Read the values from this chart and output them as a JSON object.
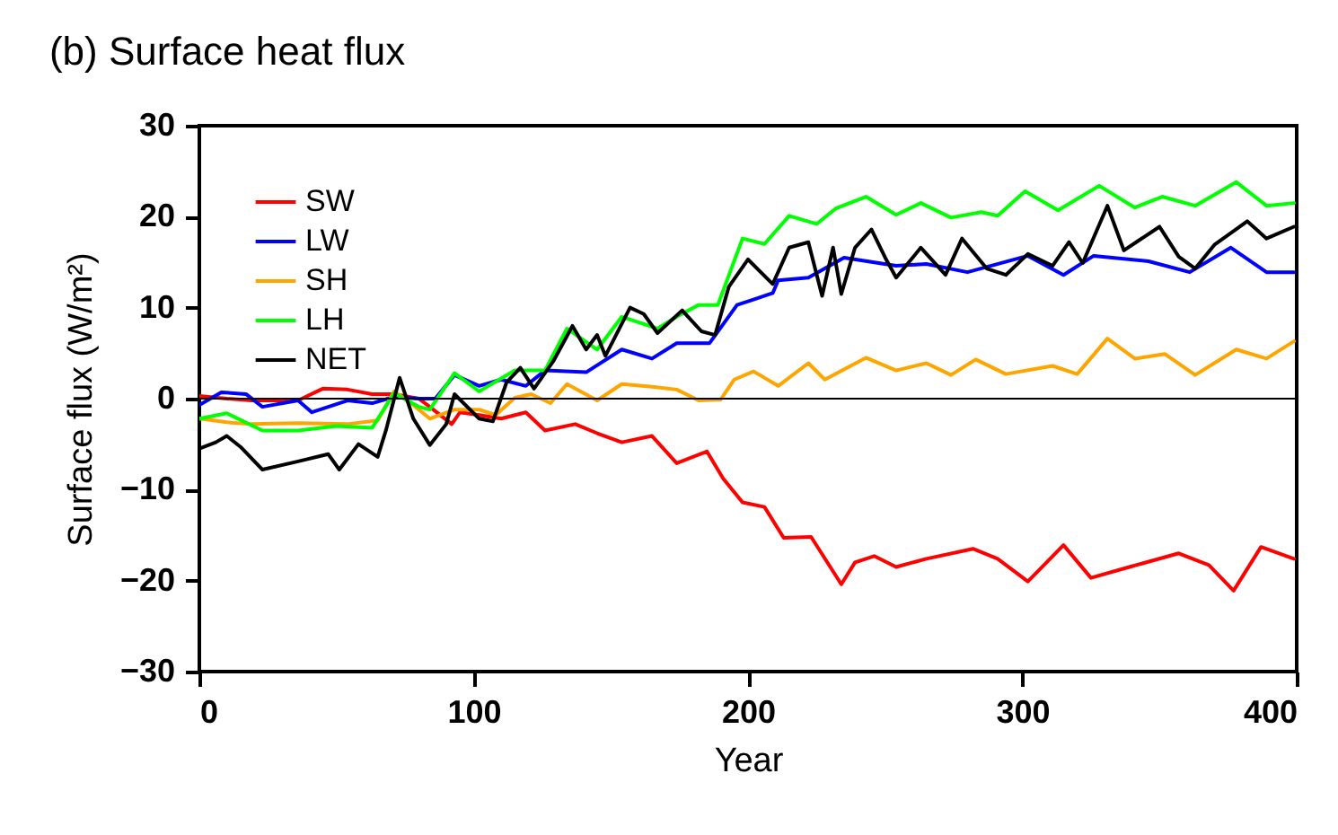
{
  "chart_data": {
    "type": "line",
    "title": "(b) Surface heat flux",
    "xlabel": "Year",
    "ylabel": "Surface flux (W/m²)",
    "xlim": [
      0,
      400
    ],
    "xticks": [
      0,
      100,
      200,
      300,
      400
    ],
    "ylim": [
      -30,
      30
    ],
    "yticks": [
      -30,
      -20,
      -10,
      0,
      10,
      20,
      30
    ],
    "grid": false,
    "legend": "top left",
    "line_style": "solid",
    "marker": "none",
    "ref_lines": [
      {
        "axis": "y",
        "value": 0,
        "color": "#000000"
      }
    ],
    "series": [
      {
        "name": "SW",
        "color": "#ff0000",
        "x": [
          0,
          10,
          19,
          36,
          45,
          54,
          63,
          71,
          80,
          84,
          92,
          95,
          102,
          110,
          119,
          126,
          137,
          145,
          154,
          165,
          174,
          185,
          191,
          198,
          206,
          213,
          223,
          234,
          239,
          246,
          254,
          265,
          282,
          291,
          302,
          315,
          325,
          339,
          357,
          368,
          377,
          387,
          399
        ],
        "values": [
          0.3,
          0,
          -0.2,
          -0.2,
          1.1,
          1.0,
          0.5,
          0.5,
          0,
          -0.9,
          -2.8,
          -1.5,
          -1.8,
          -2.2,
          -1.5,
          -3.5,
          -2.8,
          -3.8,
          -4.8,
          -4.1,
          -7.1,
          -5.8,
          -8.8,
          -11.4,
          -11.9,
          -15.3,
          -15.2,
          -20.4,
          -18,
          -17.3,
          -18.5,
          -17.6,
          -16.5,
          -17.6,
          -20.1,
          -16.1,
          -19.7,
          -18.5,
          -17,
          -18.3,
          -21.1,
          -16.3,
          -17.6
        ]
      },
      {
        "name": "LW",
        "color": "#0000ff",
        "x": [
          0,
          8,
          17,
          23,
          36,
          41,
          54,
          63,
          71,
          80,
          86,
          93,
          102,
          110,
          119,
          126,
          141,
          154,
          165,
          174,
          186,
          196,
          202,
          209,
          211,
          222,
          235,
          254,
          265,
          280,
          302,
          315,
          326,
          346,
          361,
          376,
          389,
          399
        ],
        "values": [
          -0.7,
          0.7,
          0.5,
          -0.9,
          -0.2,
          -1.5,
          -0.2,
          -0.5,
          0.2,
          0,
          0,
          2.6,
          1.4,
          2.1,
          1.4,
          3.1,
          2.9,
          5.4,
          4.4,
          6.1,
          6.1,
          10.3,
          10.9,
          11.6,
          13,
          13.3,
          15.5,
          14.6,
          14.8,
          13.9,
          15.7,
          13.6,
          15.7,
          15.1,
          13.9,
          16.6,
          13.9,
          13.9
        ]
      },
      {
        "name": "SH",
        "color": "#ffa500",
        "x": [
          0,
          10,
          19,
          36,
          54,
          65,
          71,
          78,
          84,
          93,
          102,
          108,
          115,
          121,
          128,
          134,
          145,
          154,
          165,
          174,
          182,
          190,
          195,
          202,
          211,
          222,
          228,
          243,
          254,
          265,
          274,
          283,
          294,
          311,
          320,
          331,
          341,
          352,
          363,
          378,
          389,
          399
        ],
        "values": [
          -2.2,
          -2.6,
          -2.8,
          -2.7,
          -2.8,
          -2.4,
          0.8,
          -0.7,
          -2.2,
          -1.2,
          -1.2,
          -1.8,
          0.1,
          0.5,
          -0.5,
          1.6,
          -0.2,
          1.6,
          1.3,
          1.0,
          -0.2,
          -0.1,
          2.1,
          3.0,
          1.4,
          3.9,
          2.1,
          4.5,
          3.1,
          3.9,
          2.6,
          4.3,
          2.7,
          3.6,
          2.7,
          6.6,
          4.4,
          4.9,
          2.6,
          5.4,
          4.4,
          6.3
        ]
      },
      {
        "name": "LH",
        "color": "#00ff00",
        "x": [
          0,
          10,
          23,
          36,
          50,
          63,
          71,
          80,
          84,
          93,
          102,
          115,
          126,
          134,
          145,
          154,
          167,
          174,
          182,
          189,
          198,
          206,
          215,
          225,
          232,
          243,
          254,
          263,
          274,
          285,
          291,
          301,
          313,
          328,
          341,
          351,
          363,
          378,
          389,
          399
        ],
        "values": [
          -2.2,
          -1.6,
          -3.5,
          -3.5,
          -3.0,
          -3.2,
          0.6,
          -0.9,
          -1.2,
          2.8,
          0.8,
          3.1,
          3.1,
          7.7,
          5.4,
          9.0,
          7.7,
          9.0,
          10.3,
          10.3,
          17.6,
          17,
          20.1,
          19.2,
          20.9,
          22.2,
          20.2,
          21.5,
          19.9,
          20.5,
          20.1,
          22.8,
          20.7,
          23.4,
          21,
          22.2,
          21.2,
          23.8,
          21.2,
          21.5
        ]
      },
      {
        "name": "NET",
        "color": "#000000",
        "x": [
          0,
          6,
          10,
          15,
          23,
          36,
          47,
          51,
          58,
          65,
          68,
          73,
          78,
          84,
          90,
          93,
          102,
          107,
          112,
          117,
          122,
          129,
          136,
          141,
          145,
          148,
          157,
          162,
          167,
          176,
          183,
          188,
          193,
          200,
          209,
          215,
          222,
          227,
          231,
          234,
          239,
          245,
          250,
          254,
          263,
          272,
          278,
          287,
          294,
          302,
          311,
          317,
          322,
          331,
          337,
          350,
          357,
          363,
          370,
          382,
          389,
          399
        ],
        "values": [
          -5.5,
          -4.8,
          -4.1,
          -5.3,
          -7.8,
          -6.9,
          -6.1,
          -7.8,
          -5.0,
          -6.4,
          -3.5,
          2.3,
          -2.2,
          -5.1,
          -2.8,
          0.5,
          -2.2,
          -2.5,
          1.8,
          3.4,
          1.1,
          4.1,
          8.0,
          5.4,
          7.0,
          4.7,
          10.0,
          9.3,
          7.2,
          9.7,
          7.4,
          7.0,
          12.3,
          15.3,
          12.6,
          16.6,
          17.2,
          11.3,
          16.6,
          11.5,
          16.6,
          18.6,
          15.5,
          13.3,
          16.6,
          13.6,
          17.6,
          14.3,
          13.6,
          15.9,
          14.6,
          17.2,
          14.9,
          21.2,
          16.3,
          18.9,
          15.6,
          14.3,
          16.9,
          19.5,
          17.6,
          18.9
        ]
      }
    ]
  }
}
